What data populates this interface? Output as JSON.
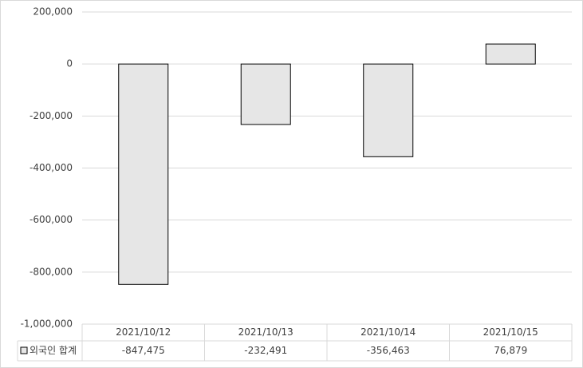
{
  "chart_data": {
    "type": "bar",
    "categories": [
      "2021/10/12",
      "2021/10/13",
      "2021/10/14",
      "2021/10/15"
    ],
    "series": [
      {
        "name": "외국인 합계",
        "color": "#e6e6e6",
        "values": [
          -847475,
          -232491,
          -356463,
          76879
        ],
        "value_labels": [
          "-847,475",
          "-232,491",
          "-356,463",
          "76,879"
        ]
      }
    ],
    "ylim": [
      -1000000,
      200000
    ],
    "yticks": [
      {
        "value": -1000000,
        "label": "-1,000,000"
      },
      {
        "value": -800000,
        "label": "-800,000"
      },
      {
        "value": -600000,
        "label": "-600,000"
      },
      {
        "value": -400000,
        "label": "-400,000"
      },
      {
        "value": -200000,
        "label": "-200,000"
      },
      0,
      {
        "value": 200000,
        "label": "200,000"
      }
    ],
    "grid": true,
    "legend": "data-table"
  }
}
